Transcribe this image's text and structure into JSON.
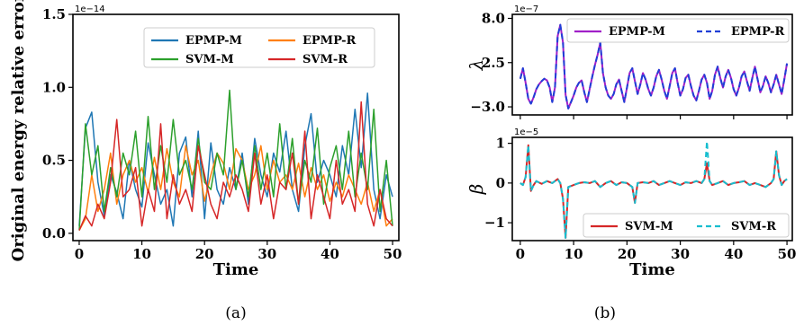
{
  "chart_data": [
    {
      "type": "line",
      "panel": "a",
      "caption": "(a)",
      "ylabel": "Original energy relative error",
      "xlabel": "Time",
      "y_offset_text": "1e−14",
      "xlim": [
        -1,
        51
      ],
      "ylim": [
        -0.05,
        1.5
      ],
      "x_ticks": [
        0,
        10,
        20,
        30,
        40,
        50
      ],
      "x_tick_labels": [
        "0",
        "10",
        "20",
        "30",
        "40",
        "50"
      ],
      "y_ticks": [
        0.0,
        0.5,
        1.0,
        1.5
      ],
      "y_tick_labels": [
        "0.0",
        "0.5",
        "1.0",
        "1.5"
      ],
      "legend": {
        "placement": "upper-right",
        "columns": 2
      },
      "x": [
        0,
        1,
        2,
        3,
        4,
        5,
        6,
        7,
        8,
        9,
        10,
        11,
        12,
        13,
        14,
        15,
        16,
        17,
        18,
        19,
        20,
        21,
        22,
        23,
        24,
        25,
        26,
        27,
        28,
        29,
        30,
        31,
        32,
        33,
        34,
        35,
        36,
        37,
        38,
        39,
        40,
        41,
        42,
        43,
        44,
        45,
        46,
        47,
        48,
        49,
        50
      ],
      "series": [
        {
          "name": "EPMP-M",
          "color": "#1f77b4",
          "values": [
            0.05,
            0.72,
            0.83,
            0.35,
            0.12,
            0.4,
            0.28,
            0.1,
            0.5,
            0.3,
            0.18,
            0.62,
            0.4,
            0.2,
            0.3,
            0.05,
            0.55,
            0.66,
            0.25,
            0.7,
            0.1,
            0.62,
            0.3,
            0.2,
            0.45,
            0.3,
            0.55,
            0.2,
            0.65,
            0.4,
            0.25,
            0.55,
            0.42,
            0.7,
            0.3,
            0.15,
            0.6,
            0.82,
            0.35,
            0.5,
            0.4,
            0.25,
            0.6,
            0.4,
            0.85,
            0.45,
            0.96,
            0.3,
            0.1,
            0.4,
            0.25
          ]
        },
        {
          "name": "EPMP-R",
          "color": "#ff7f0e",
          "values": [
            0.02,
            0.1,
            0.4,
            0.15,
            0.3,
            0.55,
            0.2,
            0.4,
            0.5,
            0.35,
            0.45,
            0.28,
            0.52,
            0.3,
            0.58,
            0.35,
            0.25,
            0.6,
            0.4,
            0.5,
            0.22,
            0.4,
            0.55,
            0.48,
            0.3,
            0.58,
            0.5,
            0.3,
            0.4,
            0.6,
            0.3,
            0.5,
            0.35,
            0.4,
            0.3,
            0.48,
            0.25,
            0.45,
            0.3,
            0.4,
            0.22,
            0.35,
            0.25,
            0.4,
            0.3,
            0.2,
            0.35,
            0.15,
            0.3,
            0.05,
            0.1
          ]
        },
        {
          "name": "SVM-M",
          "color": "#2ca02c",
          "values": [
            0.02,
            0.75,
            0.4,
            0.6,
            0.15,
            0.45,
            0.25,
            0.55,
            0.4,
            0.7,
            0.25,
            0.8,
            0.3,
            0.6,
            0.35,
            0.78,
            0.4,
            0.5,
            0.3,
            0.65,
            0.35,
            0.3,
            0.55,
            0.4,
            0.98,
            0.3,
            0.5,
            0.25,
            0.6,
            0.3,
            0.55,
            0.25,
            0.75,
            0.3,
            0.65,
            0.2,
            0.5,
            0.35,
            0.72,
            0.2,
            0.45,
            0.6,
            0.3,
            0.7,
            0.25,
            0.55,
            0.3,
            0.85,
            0.15,
            0.5,
            0.05
          ]
        },
        {
          "name": "SVM-R",
          "color": "#d62728",
          "values": [
            0.02,
            0.12,
            0.05,
            0.2,
            0.1,
            0.35,
            0.78,
            0.25,
            0.3,
            0.45,
            0.05,
            0.3,
            0.15,
            0.75,
            0.1,
            0.4,
            0.2,
            0.3,
            0.15,
            0.6,
            0.4,
            0.2,
            0.1,
            0.35,
            0.25,
            0.4,
            0.3,
            0.15,
            0.55,
            0.2,
            0.4,
            0.1,
            0.35,
            0.3,
            0.55,
            0.2,
            0.7,
            0.1,
            0.4,
            0.25,
            0.1,
            0.5,
            0.2,
            0.3,
            0.15,
            0.9,
            0.2,
            0.05,
            0.3,
            0.1,
            0.05
          ]
        }
      ]
    },
    {
      "type": "line",
      "panel": "b-top",
      "caption": "(b)",
      "ylabel": "λ",
      "xlabel": "",
      "y_offset_text": "1e−7",
      "xlim": [
        -1.5,
        51
      ],
      "ylim": [
        -4.0,
        8.5
      ],
      "x_ticks": [
        0,
        10,
        20,
        30,
        40,
        50
      ],
      "y_ticks": [
        -3.0,
        2.5,
        8.0
      ],
      "y_tick_labels": [
        "−3.0",
        "2.5",
        "8.0"
      ],
      "legend": {
        "placement": "upper-right",
        "columns": 2
      },
      "x": [
        0,
        0.5,
        1,
        1.5,
        2,
        2.5,
        3,
        3.5,
        4,
        4.5,
        5,
        5.5,
        6,
        6.5,
        7,
        7.5,
        8,
        8.5,
        9,
        9.5,
        10,
        10.5,
        11,
        11.5,
        12,
        12.5,
        13,
        13.5,
        14,
        14.5,
        15,
        15.5,
        16,
        16.5,
        17,
        17.5,
        18,
        18.5,
        19,
        19.5,
        20,
        20.5,
        21,
        21.5,
        22,
        22.5,
        23,
        23.5,
        24,
        24.5,
        25,
        25.5,
        26,
        26.5,
        27,
        27.5,
        28,
        28.5,
        29,
        29.5,
        30,
        30.5,
        31,
        31.5,
        32,
        32.5,
        33,
        33.5,
        34,
        34.5,
        35,
        35.5,
        36,
        36.5,
        37,
        37.5,
        38,
        38.5,
        39,
        39.5,
        40,
        40.5,
        41,
        41.5,
        42,
        42.5,
        43,
        43.5,
        44,
        44.5,
        45,
        45.5,
        46,
        46.5,
        47,
        47.5,
        48,
        48.5,
        49,
        49.5,
        50
      ],
      "series": [
        {
          "name": "EPMP-M",
          "color": "#a020c8",
          "style": "solid",
          "values": [
            0.5,
            1.8,
            0.0,
            -2.0,
            -2.6,
            -1.8,
            -0.8,
            -0.2,
            0.2,
            0.5,
            0.3,
            -0.6,
            -2.4,
            -0.6,
            5.8,
            7.2,
            5.0,
            -1.5,
            -3.2,
            -2.4,
            -1.6,
            -0.6,
            0.0,
            0.3,
            -1.2,
            -2.4,
            -0.8,
            0.8,
            2.2,
            3.5,
            5.0,
            1.2,
            -0.6,
            -1.6,
            -2.0,
            -1.4,
            -0.2,
            0.4,
            -1.0,
            -2.4,
            -0.6,
            1.2,
            1.8,
            0.2,
            -1.4,
            -0.2,
            1.2,
            0.4,
            -0.8,
            -1.6,
            -0.6,
            0.8,
            1.6,
            0.4,
            -1.0,
            -2.0,
            -0.4,
            1.2,
            1.8,
            0.0,
            -1.6,
            -0.8,
            0.6,
            1.0,
            -0.4,
            -1.6,
            -2.2,
            -1.0,
            0.4,
            1.0,
            0.0,
            -2.0,
            -1.0,
            1.0,
            2.0,
            0.6,
            -0.6,
            0.8,
            1.6,
            0.6,
            -0.8,
            -1.6,
            -0.6,
            0.8,
            1.4,
            0.2,
            -1.0,
            0.6,
            2.0,
            0.4,
            -1.2,
            -0.4,
            0.8,
            0.0,
            -1.2,
            -0.2,
            1.0,
            -0.2,
            -1.4,
            0.4,
            2.4
          ]
        },
        {
          "name": "EPMP-R",
          "color": "#1f3fd6",
          "style": "dashed",
          "values": [
            0.5,
            1.8,
            0.0,
            -2.0,
            -2.6,
            -1.8,
            -0.8,
            -0.2,
            0.2,
            0.5,
            0.3,
            -0.6,
            -2.4,
            -0.6,
            5.8,
            7.2,
            5.0,
            -1.5,
            -3.2,
            -2.4,
            -1.6,
            -0.6,
            0.0,
            0.3,
            -1.2,
            -2.4,
            -0.8,
            0.8,
            2.2,
            3.5,
            5.0,
            1.2,
            -0.6,
            -1.6,
            -2.0,
            -1.4,
            -0.2,
            0.4,
            -1.0,
            -2.4,
            -0.6,
            1.2,
            1.8,
            0.2,
            -1.4,
            -0.2,
            1.2,
            0.4,
            -0.8,
            -1.6,
            -0.6,
            0.8,
            1.6,
            0.4,
            -1.0,
            -2.0,
            -0.4,
            1.2,
            1.8,
            0.0,
            -1.6,
            -0.8,
            0.6,
            1.0,
            -0.4,
            -1.6,
            -2.2,
            -1.0,
            0.4,
            1.0,
            0.0,
            -2.0,
            -1.0,
            1.0,
            2.0,
            0.6,
            -0.6,
            0.8,
            1.6,
            0.6,
            -0.8,
            -1.6,
            -0.6,
            0.8,
            1.4,
            0.2,
            -1.0,
            0.6,
            2.0,
            0.4,
            -1.2,
            -0.4,
            0.8,
            0.0,
            -1.2,
            -0.2,
            1.0,
            -0.2,
            -1.4,
            0.4,
            2.4
          ]
        }
      ]
    },
    {
      "type": "line",
      "panel": "b-bottom",
      "ylabel": "β",
      "xlabel": "Time",
      "y_offset_text": "1e−5",
      "xlim": [
        -1.5,
        51
      ],
      "ylim": [
        -1.45,
        1.15
      ],
      "x_ticks": [
        0,
        10,
        20,
        30,
        40,
        50
      ],
      "x_tick_labels": [
        "0",
        "10",
        "20",
        "30",
        "40",
        "50"
      ],
      "y_ticks": [
        -1,
        0,
        1
      ],
      "y_tick_labels": [
        "−1",
        "0",
        "1"
      ],
      "legend": {
        "placement": "lower-right",
        "columns": 2
      },
      "x": [
        0,
        0.5,
        1,
        1.5,
        2,
        2.5,
        3,
        4,
        5,
        6,
        7,
        7.5,
        8,
        8.5,
        9,
        10,
        11,
        12,
        13,
        14,
        15,
        16,
        17,
        18,
        19,
        20,
        21,
        21.5,
        22,
        23,
        24,
        25,
        26,
        27,
        28,
        29,
        30,
        31,
        32,
        33,
        34,
        34.5,
        35,
        35.5,
        36,
        37,
        38,
        39,
        40,
        41,
        42,
        43,
        44,
        45,
        46,
        47,
        47.5,
        48,
        48.5,
        49,
        49.5,
        50
      ],
      "series": [
        {
          "name": "SVM-M",
          "color": "#d62728",
          "style": "solid",
          "values": [
            0.0,
            -0.05,
            0.15,
            0.95,
            -0.2,
            -0.05,
            0.05,
            -0.02,
            0.05,
            0.0,
            0.1,
            0.0,
            -0.4,
            -1.38,
            -0.1,
            -0.05,
            0.0,
            0.02,
            0.0,
            0.05,
            -0.1,
            0.0,
            0.05,
            -0.05,
            0.02,
            0.0,
            -0.1,
            -0.5,
            0.0,
            0.02,
            0.0,
            0.05,
            -0.05,
            0.0,
            0.05,
            0.0,
            -0.05,
            0.02,
            0.0,
            0.05,
            0.0,
            0.1,
            0.5,
            0.05,
            -0.05,
            0.0,
            0.05,
            -0.05,
            0.0,
            0.02,
            0.05,
            -0.05,
            0.0,
            -0.05,
            -0.1,
            0.0,
            0.1,
            0.8,
            0.2,
            -0.05,
            0.05,
            0.1
          ]
        },
        {
          "name": "SVM-R",
          "color": "#17becf",
          "style": "dashed",
          "values": [
            0.0,
            -0.05,
            0.15,
            0.95,
            -0.2,
            -0.05,
            0.05,
            -0.02,
            0.05,
            0.0,
            0.1,
            0.0,
            -0.4,
            -1.38,
            -0.1,
            -0.05,
            0.0,
            0.02,
            0.0,
            0.05,
            -0.1,
            0.0,
            0.05,
            -0.05,
            0.02,
            0.0,
            -0.1,
            -0.5,
            0.0,
            0.02,
            0.0,
            0.05,
            -0.05,
            0.0,
            0.05,
            0.0,
            -0.05,
            0.02,
            0.0,
            0.05,
            0.0,
            0.1,
            1.05,
            0.05,
            -0.05,
            0.0,
            0.05,
            -0.05,
            0.0,
            0.02,
            0.05,
            -0.05,
            0.0,
            -0.05,
            -0.1,
            0.0,
            0.1,
            0.8,
            0.2,
            -0.05,
            0.05,
            0.1
          ]
        }
      ]
    }
  ]
}
